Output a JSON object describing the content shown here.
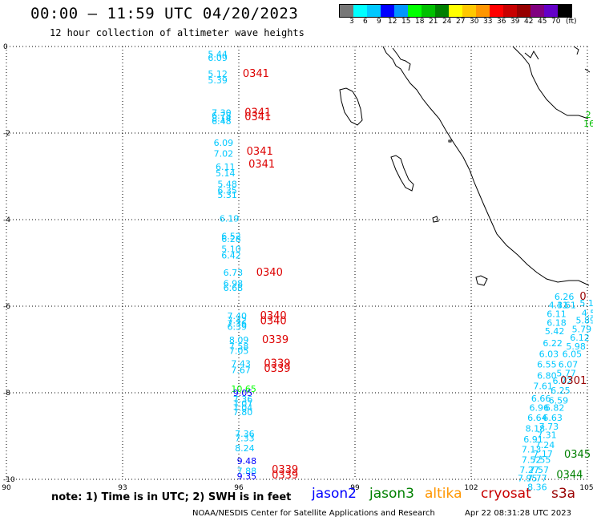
{
  "title": "00:00 – 11:59 UTC 04/20/2023",
  "subtitle": "12 hour collection of altimeter wave heights",
  "color_scale": {
    "unit": "(ft)",
    "colors": [
      "#777777",
      "#00ffff",
      "#00c8ff",
      "#0000ff",
      "#0096ff",
      "#00ff00",
      "#00c000",
      "#008000",
      "#ffff00",
      "#ffc800",
      "#ff9600",
      "#ff0000",
      "#c80000",
      "#960000",
      "#800080",
      "#6400c8",
      "#000000"
    ],
    "labels": [
      "3",
      "6",
      "9",
      "12",
      "15",
      "18",
      "21",
      "24",
      "27",
      "30",
      "33",
      "36",
      "39",
      "42",
      "45",
      "70"
    ]
  },
  "chart_data": {
    "type": "scatter",
    "x_ticks": [
      "90",
      "93",
      "96",
      "99",
      "102",
      "105"
    ],
    "y_ticks": [
      "0",
      "-2",
      "-4",
      "-6",
      "-8",
      "-10"
    ],
    "xlim": [
      90,
      105
    ],
    "ylim": [
      -10,
      0
    ],
    "grid": true,
    "wave_heights": [
      {
        "x": 95.2,
        "y": -0.25,
        "v": "5.44",
        "c": "#00c8ff"
      },
      {
        "x": 95.2,
        "y": -0.33,
        "v": "6.09",
        "c": "#00c8ff"
      },
      {
        "x": 95.2,
        "y": -0.7,
        "v": "5.12",
        "c": "#00c8ff"
      },
      {
        "x": 95.2,
        "y": -0.85,
        "v": "5.39",
        "c": "#00c8ff"
      },
      {
        "x": 95.3,
        "y": -1.6,
        "v": "7.30",
        "c": "#00c8ff"
      },
      {
        "x": 95.3,
        "y": -1.67,
        "v": "6.78",
        "c": "#00c8ff"
      },
      {
        "x": 95.3,
        "y": -1.73,
        "v": "8.14",
        "c": "#00c8ff"
      },
      {
        "x": 95.3,
        "y": -1.8,
        "v": "6.48",
        "c": "#00c8ff"
      },
      {
        "x": 95.35,
        "y": -2.3,
        "v": "6.09",
        "c": "#00c8ff"
      },
      {
        "x": 95.35,
        "y": -2.55,
        "v": "7.02",
        "c": "#00c8ff"
      },
      {
        "x": 95.4,
        "y": -2.85,
        "v": "6.11",
        "c": "#00c8ff"
      },
      {
        "x": 95.4,
        "y": -3.0,
        "v": "5.14",
        "c": "#00c8ff"
      },
      {
        "x": 95.45,
        "y": -3.25,
        "v": "5.48",
        "c": "#00c8ff"
      },
      {
        "x": 95.45,
        "y": -3.4,
        "v": "6.35",
        "c": "#00c8ff"
      },
      {
        "x": 95.45,
        "y": -3.5,
        "v": "5.31",
        "c": "#00c8ff"
      },
      {
        "x": 95.5,
        "y": -4.05,
        "v": "6.19",
        "c": "#00c8ff"
      },
      {
        "x": 95.55,
        "y": -4.45,
        "v": "6.52",
        "c": "#00c8ff"
      },
      {
        "x": 95.55,
        "y": -4.52,
        "v": "6.28",
        "c": "#00c8ff"
      },
      {
        "x": 95.55,
        "y": -4.75,
        "v": "5.10",
        "c": "#00c8ff"
      },
      {
        "x": 95.55,
        "y": -4.9,
        "v": "6.42",
        "c": "#00c8ff"
      },
      {
        "x": 95.6,
        "y": -5.3,
        "v": "6.73",
        "c": "#00c8ff"
      },
      {
        "x": 95.6,
        "y": -5.55,
        "v": "6.98",
        "c": "#00c8ff"
      },
      {
        "x": 95.6,
        "y": -5.65,
        "v": "6.68",
        "c": "#00c8ff"
      },
      {
        "x": 95.7,
        "y": -6.3,
        "v": "7.40",
        "c": "#00c8ff"
      },
      {
        "x": 95.7,
        "y": -6.4,
        "v": "7.42",
        "c": "#00c8ff"
      },
      {
        "x": 95.7,
        "y": -6.47,
        "v": "7.36",
        "c": "#00c8ff"
      },
      {
        "x": 95.7,
        "y": -6.55,
        "v": "6.39",
        "c": "#00c8ff"
      },
      {
        "x": 95.75,
        "y": -6.85,
        "v": "8.09",
        "c": "#00c8ff"
      },
      {
        "x": 95.75,
        "y": -7.0,
        "v": "7.58",
        "c": "#00c8ff"
      },
      {
        "x": 95.75,
        "y": -7.1,
        "v": "7.05",
        "c": "#00c8ff"
      },
      {
        "x": 95.8,
        "y": -7.4,
        "v": "7.43",
        "c": "#00c8ff"
      },
      {
        "x": 95.8,
        "y": -7.55,
        "v": "7.67",
        "c": "#00c8ff"
      },
      {
        "x": 95.8,
        "y": -7.98,
        "v": "10.65",
        "c": "#00ff00"
      },
      {
        "x": 95.85,
        "y": -8.07,
        "v": "9.05",
        "c": "#0000ff"
      },
      {
        "x": 95.85,
        "y": -8.22,
        "v": "7.36",
        "c": "#00c8ff"
      },
      {
        "x": 95.85,
        "y": -8.32,
        "v": "7.07",
        "c": "#00c8ff"
      },
      {
        "x": 95.85,
        "y": -8.42,
        "v": "7.04",
        "c": "#00c8ff"
      },
      {
        "x": 95.85,
        "y": -8.52,
        "v": "7.80",
        "c": "#00c8ff"
      },
      {
        "x": 95.9,
        "y": -9.02,
        "v": "7.36",
        "c": "#00c8ff"
      },
      {
        "x": 95.9,
        "y": -9.12,
        "v": "7.33",
        "c": "#00c8ff"
      },
      {
        "x": 95.9,
        "y": -9.35,
        "v": "8.24",
        "c": "#00c8ff"
      },
      {
        "x": 95.95,
        "y": -9.65,
        "v": "9.48",
        "c": "#0000ff"
      },
      {
        "x": 95.95,
        "y": -9.88,
        "v": "7.88",
        "c": "#00c8ff"
      },
      {
        "x": 95.95,
        "y": -10.0,
        "v": "9.35",
        "c": "#0000ff"
      },
      {
        "x": 104.15,
        "y": -5.85,
        "v": "6.26",
        "c": "#00c8ff"
      },
      {
        "x": 104.0,
        "y": -6.05,
        "v": "4.31",
        "c": "#00c8ff"
      },
      {
        "x": 104.2,
        "y": -6.05,
        "v": "4.61",
        "c": "#00c8ff"
      },
      {
        "x": 104.8,
        "y": -6.0,
        "v": "5.12",
        "c": "#00c8ff"
      },
      {
        "x": 103.95,
        "y": -6.25,
        "v": "6.11",
        "c": "#00c8ff"
      },
      {
        "x": 104.85,
        "y": -6.23,
        "v": "4.54",
        "c": "#00c8ff"
      },
      {
        "x": 103.95,
        "y": -6.45,
        "v": "6.18",
        "c": "#00c8ff"
      },
      {
        "x": 104.7,
        "y": -6.4,
        "v": "5.89",
        "c": "#00c8ff"
      },
      {
        "x": 103.9,
        "y": -6.65,
        "v": "5.42",
        "c": "#00c8ff"
      },
      {
        "x": 104.6,
        "y": -6.6,
        "v": "5.79",
        "c": "#00c8ff"
      },
      {
        "x": 104.55,
        "y": -6.8,
        "v": "6.12",
        "c": "#00c8ff"
      },
      {
        "x": 103.85,
        "y": -6.93,
        "v": "6.22",
        "c": "#00c8ff"
      },
      {
        "x": 104.45,
        "y": -7.0,
        "v": "5.98",
        "c": "#00c8ff"
      },
      {
        "x": 103.75,
        "y": -7.18,
        "v": "6.03",
        "c": "#00c8ff"
      },
      {
        "x": 104.35,
        "y": -7.18,
        "v": "6.05",
        "c": "#00c8ff"
      },
      {
        "x": 103.7,
        "y": -7.42,
        "v": "6.55",
        "c": "#00c8ff"
      },
      {
        "x": 104.25,
        "y": -7.42,
        "v": "6.07",
        "c": "#00c8ff"
      },
      {
        "x": 104.2,
        "y": -7.62,
        "v": "5.77",
        "c": "#00c8ff"
      },
      {
        "x": 103.7,
        "y": -7.68,
        "v": "6.80",
        "c": "#00c8ff"
      },
      {
        "x": 104.1,
        "y": -7.8,
        "v": "6.72",
        "c": "#00c8ff"
      },
      {
        "x": 103.6,
        "y": -7.92,
        "v": "7.61",
        "c": "#00c8ff"
      },
      {
        "x": 104.05,
        "y": -8.02,
        "v": "6.25",
        "c": "#00c8ff"
      },
      {
        "x": 103.55,
        "y": -8.2,
        "v": "6.66",
        "c": "#00c8ff"
      },
      {
        "x": 104.0,
        "y": -8.25,
        "v": "6.59",
        "c": "#00c8ff"
      },
      {
        "x": 103.5,
        "y": -8.42,
        "v": "6.96",
        "c": "#00c8ff"
      },
      {
        "x": 103.9,
        "y": -8.42,
        "v": "6.82",
        "c": "#00c8ff"
      },
      {
        "x": 103.45,
        "y": -8.65,
        "v": "6.64",
        "c": "#00c8ff"
      },
      {
        "x": 103.85,
        "y": -8.65,
        "v": "6.63",
        "c": "#00c8ff"
      },
      {
        "x": 103.75,
        "y": -8.85,
        "v": "7.73",
        "c": "#00c8ff"
      },
      {
        "x": 103.4,
        "y": -8.9,
        "v": "8.18",
        "c": "#00c8ff"
      },
      {
        "x": 103.7,
        "y": -9.05,
        "v": "7.31",
        "c": "#00c8ff"
      },
      {
        "x": 103.35,
        "y": -9.15,
        "v": "6.91",
        "c": "#00c8ff"
      },
      {
        "x": 103.65,
        "y": -9.28,
        "v": "7.24",
        "c": "#00c8ff"
      },
      {
        "x": 103.3,
        "y": -9.38,
        "v": "7.13",
        "c": "#00c8ff"
      },
      {
        "x": 103.6,
        "y": -9.48,
        "v": "7.17",
        "c": "#00c8ff"
      },
      {
        "x": 103.3,
        "y": -9.62,
        "v": "7.52",
        "c": "#00c8ff"
      },
      {
        "x": 103.55,
        "y": -9.62,
        "v": "7.55",
        "c": "#00c8ff"
      },
      {
        "x": 103.25,
        "y": -9.85,
        "v": "7.27",
        "c": "#00c8ff"
      },
      {
        "x": 103.5,
        "y": -9.85,
        "v": "7.57",
        "c": "#00c8ff"
      },
      {
        "x": 103.2,
        "y": -10.05,
        "v": "7.95",
        "c": "#00c8ff"
      },
      {
        "x": 103.45,
        "y": -10.05,
        "v": "7.77",
        "c": "#00c8ff"
      },
      {
        "x": 103.45,
        "y": -10.25,
        "v": "8.36",
        "c": "#00c8ff"
      },
      {
        "x": 104.95,
        "y": -1.65,
        "v": "2",
        "c": "#00c000"
      },
      {
        "x": 104.9,
        "y": -1.85,
        "v": "16",
        "c": "#00c000"
      }
    ],
    "time_labels": [
      {
        "x": 96.1,
        "y": -0.7,
        "t": "0341",
        "c": "#dd0000"
      },
      {
        "x": 96.15,
        "y": -1.6,
        "t": "0341",
        "c": "#dd0000"
      },
      {
        "x": 96.15,
        "y": -1.7,
        "t": "0341",
        "c": "#dd0000"
      },
      {
        "x": 96.2,
        "y": -2.5,
        "t": "0341",
        "c": "#dd0000"
      },
      {
        "x": 96.25,
        "y": -2.8,
        "t": "0341",
        "c": "#dd0000"
      },
      {
        "x": 96.45,
        "y": -5.3,
        "t": "0340",
        "c": "#dd0000"
      },
      {
        "x": 96.55,
        "y": -6.3,
        "t": "0340",
        "c": "#dd0000"
      },
      {
        "x": 96.55,
        "y": -6.42,
        "t": "0340",
        "c": "#dd0000"
      },
      {
        "x": 96.6,
        "y": -6.85,
        "t": "0339",
        "c": "#dd0000"
      },
      {
        "x": 96.65,
        "y": -7.4,
        "t": "0339",
        "c": "#dd0000"
      },
      {
        "x": 96.65,
        "y": -7.52,
        "t": "0339",
        "c": "#dd0000"
      },
      {
        "x": 96.85,
        "y": -9.85,
        "t": "0339",
        "c": "#dd0000"
      },
      {
        "x": 96.85,
        "y": -9.98,
        "t": "0339",
        "c": "#dd0000"
      },
      {
        "x": 104.8,
        "y": -5.85,
        "t": "0",
        "c": "#990000"
      },
      {
        "x": 104.3,
        "y": -7.8,
        "t": "0301",
        "c": "#990000"
      },
      {
        "x": 104.4,
        "y": -9.5,
        "t": "0345",
        "c": "#008000"
      },
      {
        "x": 104.2,
        "y": -9.97,
        "t": "0344",
        "c": "#008000"
      }
    ]
  },
  "footer": {
    "note": "note: 1) Time is in UTC; 2) SWH is in feet",
    "satellites": [
      {
        "name": "jason2",
        "color": "#0000ff"
      },
      {
        "name": "jason3",
        "color": "#008000"
      },
      {
        "name": "altika",
        "color": "#ff9600"
      },
      {
        "name": "cryosat",
        "color": "#c80000"
      },
      {
        "name": "s3a",
        "color": "#990000"
      }
    ],
    "credit": "NOAA/NESDIS Center for Satellite Applications and Research",
    "timestamp": "Apr 22 08:31:28 UTC 2023"
  }
}
